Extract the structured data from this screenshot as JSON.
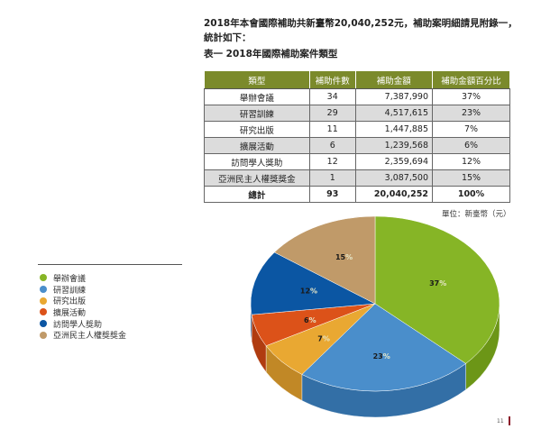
{
  "intro": {
    "text": "2018年本會國際補助共新臺幣20,040,252元，補助案明細請見附錄一，統計如下：",
    "caption": "表一 2018年國際補助案件類型"
  },
  "table": {
    "headers": [
      "類型",
      "補助件數",
      "補助金額",
      "補助金額百分比"
    ],
    "rows": [
      [
        "舉辦會議",
        "34",
        "7,387,990",
        "37%"
      ],
      [
        "研習訓練",
        "29",
        "4,517,615",
        "23%"
      ],
      [
        "研究出版",
        "11",
        "1,447,885",
        "7%"
      ],
      [
        "擴展活動",
        "6",
        "1,239,568",
        "6%"
      ],
      [
        "訪問學人獎助",
        "12",
        "2,359,694",
        "12%"
      ],
      [
        "亞洲民主人權獎獎金",
        "1",
        "3,087,500",
        "15%"
      ]
    ],
    "total": [
      "總計",
      "93",
      "20,040,252",
      "100%"
    ]
  },
  "unit": "單位：新臺幣（元）",
  "page_number": "11",
  "chart_data": {
    "type": "pie",
    "title": "",
    "categories": [
      "舉辦會議",
      "研習訓練",
      "研究出版",
      "擴展活動",
      "訪問學人獎助",
      "亞洲民主人權獎獎金"
    ],
    "values": [
      37,
      23,
      7,
      6,
      12,
      15
    ],
    "labels": [
      "37",
      "23",
      "7",
      "6",
      "12",
      "15"
    ],
    "colors": [
      "#86b526",
      "#4a8ecb",
      "#e9a832",
      "#dc5219",
      "#0b56a3",
      "#c09a69"
    ],
    "side_colors": [
      "#6c9617",
      "#336fa6",
      "#c18826",
      "#b03c10",
      "#08427e",
      "#9c7b50"
    ],
    "legend_position": "left"
  }
}
